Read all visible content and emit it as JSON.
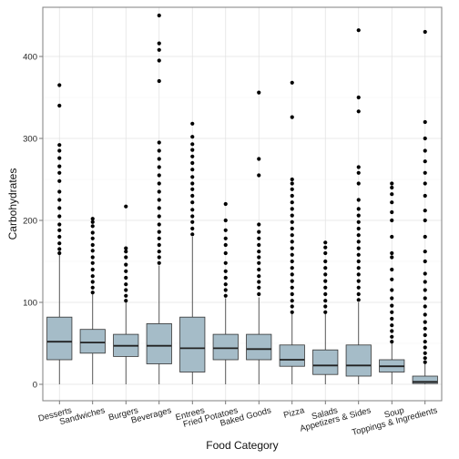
{
  "chart_data": {
    "type": "boxplot",
    "title": "",
    "xlabel": "Food Category",
    "ylabel": "Carbohydrates",
    "ylim": [
      -20,
      460
    ],
    "yticks": [
      0,
      100,
      200,
      300,
      400
    ],
    "grid": true,
    "legend": "none",
    "box_fill": "#a5bcc8",
    "outlier_color": "#000000",
    "categories": [
      "Desserts",
      "Sandwiches",
      "Burgers",
      "Beverages",
      "Entrees",
      "Fried Potatoes",
      "Baked Goods",
      "Pizza",
      "Salads",
      "Appetizers & Sides",
      "Soup",
      "Toppings & Ingredients"
    ],
    "boxes": [
      {
        "category": "Desserts",
        "whisker_low": 0,
        "q1": 30,
        "median": 52,
        "q3": 82,
        "whisker_high": 158,
        "outliers": [
          160,
          165,
          172,
          180,
          188,
          195,
          205,
          215,
          225,
          235,
          248,
          258,
          266,
          276,
          285,
          292,
          340,
          365
        ]
      },
      {
        "category": "Sandwiches",
        "whisker_low": 0,
        "q1": 38,
        "median": 51,
        "q3": 67,
        "whisker_high": 110,
        "outliers": [
          112,
          118,
          125,
          132,
          140,
          148,
          155,
          163,
          170,
          178,
          185,
          193,
          198,
          202
        ]
      },
      {
        "category": "Burgers",
        "whisker_low": 0,
        "q1": 34,
        "median": 47,
        "q3": 61,
        "whisker_high": 100,
        "outliers": [
          102,
          108,
          115,
          122,
          130,
          138,
          146,
          155,
          162,
          166,
          217
        ]
      },
      {
        "category": "Beverages",
        "whisker_low": 0,
        "q1": 25,
        "median": 47,
        "q3": 74,
        "whisker_high": 145,
        "outliers": [
          148,
          155,
          162,
          170,
          178,
          186,
          195,
          205,
          215,
          225,
          235,
          245,
          255,
          265,
          275,
          285,
          295,
          370,
          395,
          408,
          416,
          450
        ]
      },
      {
        "category": "Entrees",
        "whisker_low": 0,
        "q1": 15,
        "median": 44,
        "q3": 82,
        "whisker_high": 180,
        "outliers": [
          183,
          190,
          198,
          205,
          213,
          222,
          230,
          238,
          245,
          253,
          262,
          270,
          278,
          286,
          293,
          302,
          318
        ]
      },
      {
        "category": "Fried Potatoes",
        "whisker_low": 0,
        "q1": 30,
        "median": 44,
        "q3": 61,
        "whisker_high": 105,
        "outliers": [
          108,
          115,
          122,
          130,
          138,
          148,
          160,
          170,
          178,
          188,
          200,
          220
        ]
      },
      {
        "category": "Baked Goods",
        "whisker_low": 0,
        "q1": 30,
        "median": 43,
        "q3": 61,
        "whisker_high": 106,
        "outliers": [
          110,
          118,
          125,
          132,
          140,
          148,
          155,
          162,
          170,
          178,
          186,
          195,
          255,
          275,
          356
        ]
      },
      {
        "category": "Pizza",
        "whisker_low": 0,
        "q1": 22,
        "median": 30,
        "q3": 48,
        "whisker_high": 86,
        "outliers": [
          88,
          95,
          102,
          110,
          118,
          126,
          134,
          142,
          150,
          158,
          166,
          174,
          182,
          190,
          198,
          206,
          214,
          222,
          230,
          238,
          245,
          250,
          326,
          368
        ]
      },
      {
        "category": "Salads",
        "whisker_low": 0,
        "q1": 12,
        "median": 23,
        "q3": 42,
        "whisker_high": 86,
        "outliers": [
          88,
          95,
          102,
          110,
          118,
          126,
          134,
          142,
          150,
          160,
          167,
          173
        ]
      },
      {
        "category": "Appetizers & Sides",
        "whisker_low": 0,
        "q1": 10,
        "median": 23,
        "q3": 48,
        "whisker_high": 100,
        "outliers": [
          103,
          110,
          118,
          126,
          134,
          142,
          150,
          158,
          166,
          174,
          182,
          190,
          198,
          206,
          214,
          225,
          245,
          258,
          265,
          333,
          350,
          432
        ]
      },
      {
        "category": "Soup",
        "whisker_low": 0,
        "q1": 15,
        "median": 22,
        "q3": 30,
        "whisker_high": 50,
        "outliers": [
          52,
          58,
          65,
          72,
          80,
          88,
          96,
          105,
          115,
          128,
          140,
          155,
          160,
          180,
          200,
          210,
          222,
          232,
          240,
          245
        ]
      },
      {
        "category": "Toppings & Ingredients",
        "whisker_low": 0,
        "q1": 1,
        "median": 3,
        "q3": 10,
        "whisker_high": 25,
        "outliers": [
          27,
          32,
          38,
          45,
          52,
          60,
          68,
          76,
          85,
          95,
          105,
          115,
          125,
          135,
          150,
          162,
          180,
          200,
          212,
          230,
          245,
          258,
          272,
          285,
          300,
          320,
          430
        ]
      }
    ]
  }
}
